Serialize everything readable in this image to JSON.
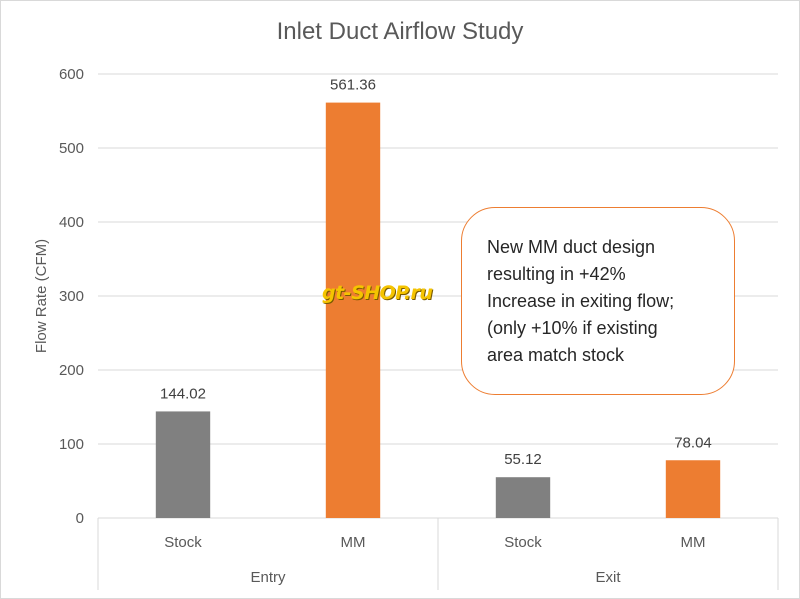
{
  "chart_data": {
    "type": "bar",
    "title": "Inlet Duct Airflow Study",
    "ylabel": "Flow Rate (CFM)",
    "xlabel": "",
    "ylim": [
      0,
      600
    ],
    "yticks": [
      0,
      100,
      200,
      300,
      400,
      500,
      600
    ],
    "grid": true,
    "groups": [
      {
        "name": "Entry",
        "bars": [
          {
            "label": "Stock",
            "value": 144.02,
            "value_label": "144.02",
            "color": "#808080"
          },
          {
            "label": "MM",
            "value": 561.36,
            "value_label": "561.36",
            "color": "#ed7d31"
          }
        ]
      },
      {
        "name": "Exit",
        "bars": [
          {
            "label": "Stock",
            "value": 55.12,
            "value_label": "55.12",
            "color": "#808080"
          },
          {
            "label": "MM",
            "value": 78.04,
            "value_label": "78.04",
            "color": "#ed7d31"
          }
        ]
      }
    ]
  },
  "callout": {
    "lines": [
      "New MM duct design",
      "resulting in +42%",
      "Increase in exiting flow;",
      "(only +10% if existing",
      "area match stock"
    ]
  },
  "watermark": "gt-SHOP.ru"
}
